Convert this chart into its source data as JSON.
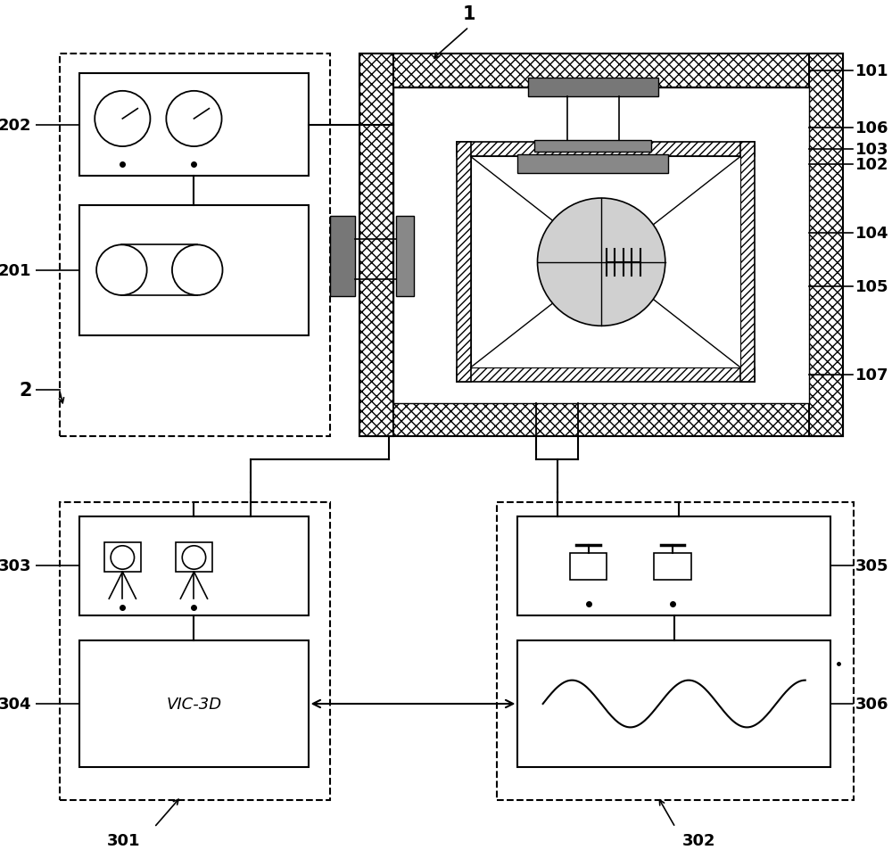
{
  "bg_color": "#ffffff",
  "line_color": "#000000",
  "gray_dark": "#666666",
  "gray_mid": "#888888",
  "gray_light": "#cccccc",
  "gray_lighter": "#d8d8d8"
}
